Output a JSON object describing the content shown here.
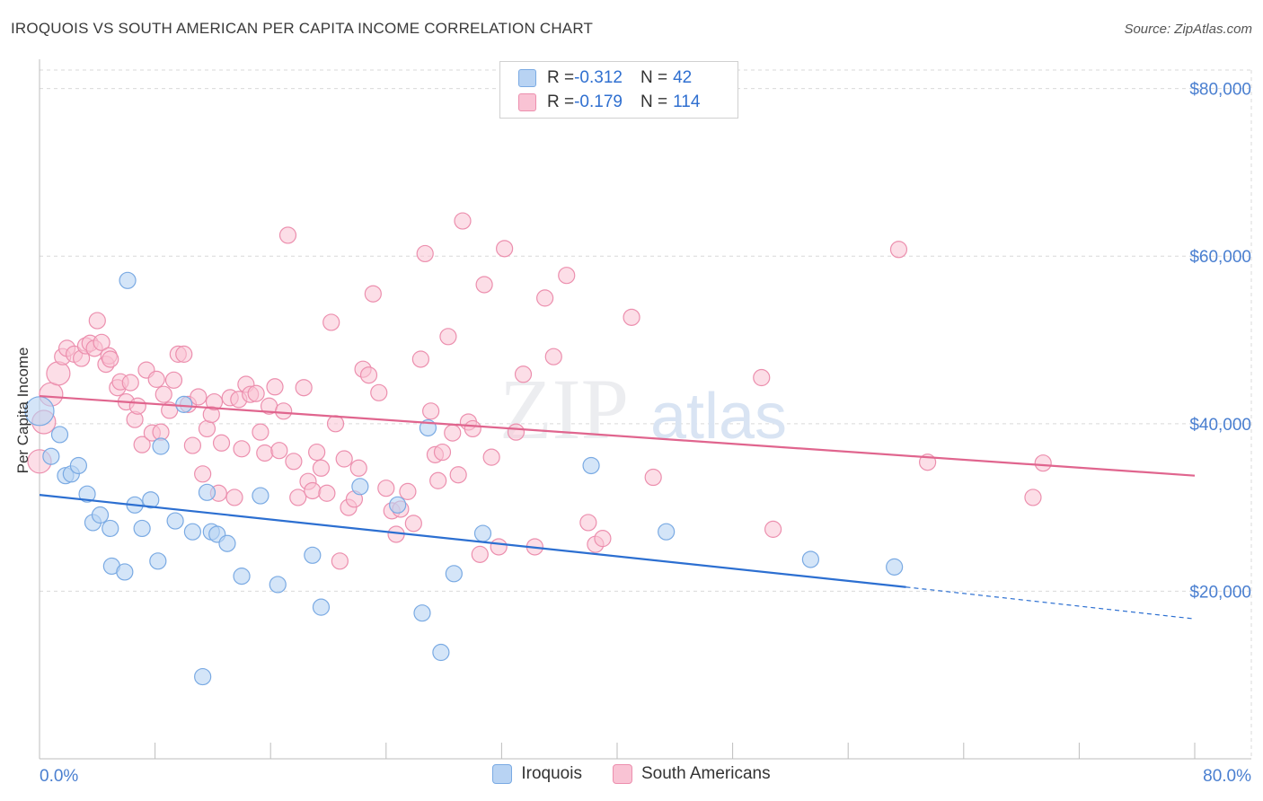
{
  "header": {
    "title": "IROQUOIS VS SOUTH AMERICAN PER CAPITA INCOME CORRELATION CHART",
    "source": "Source: ZipAtlas.com"
  },
  "legend": {
    "iroquois": {
      "r_label": "R = ",
      "r_value": "-0.312",
      "n_label": "N = ",
      "n_value": "42"
    },
    "south_americans": {
      "r_label": "R = ",
      "r_value": "-0.179",
      "n_label": "N = ",
      "n_value": "114"
    }
  },
  "colors": {
    "blue_fill": "#b8d3f3",
    "blue_stroke": "#7aaae3",
    "blue_line": "#2c6fd1",
    "pink_fill": "#f9c3d4",
    "pink_stroke": "#ec8fae",
    "pink_line": "#e0658e",
    "tick_label": "#4a7fd0",
    "grid": "#d9d9d9"
  },
  "chart_data": {
    "type": "scatter",
    "title": "IROQUOIS VS SOUTH AMERICAN PER CAPITA INCOME CORRELATION CHART",
    "xlabel": "",
    "ylabel": "Per Capita Income",
    "xlim": [
      0,
      80
    ],
    "ylim": [
      0,
      82000
    ],
    "x_tick_labels": [
      "0.0%",
      "80.0%"
    ],
    "y_ticks": [
      {
        "value": 20000,
        "label": "$20,000"
      },
      {
        "value": 40000,
        "label": "$40,000"
      },
      {
        "value": 60000,
        "label": "$60,000"
      },
      {
        "value": 80000,
        "label": "$80,000"
      }
    ],
    "watermark": {
      "zip": "ZIP",
      "atlas": "atlas"
    },
    "series": [
      {
        "name": "Iroquois",
        "r": -0.312,
        "n": 42,
        "trend": {
          "x0": 0,
          "y0": 31500,
          "x1": 60,
          "y1": 20500,
          "dash_to_x": 80,
          "dash_to_y": 16700
        },
        "points": [
          [
            0,
            41500
          ],
          [
            0.8,
            36100
          ],
          [
            1.4,
            38700
          ],
          [
            1.8,
            33800
          ],
          [
            2.2,
            34000
          ],
          [
            2.7,
            35000
          ],
          [
            3.3,
            31600
          ],
          [
            3.7,
            28200
          ],
          [
            4.2,
            29100
          ],
          [
            4.9,
            27500
          ],
          [
            5.0,
            23000
          ],
          [
            5.9,
            22300
          ],
          [
            6.1,
            57100
          ],
          [
            6.6,
            30300
          ],
          [
            7.1,
            27500
          ],
          [
            7.7,
            30900
          ],
          [
            8.2,
            23600
          ],
          [
            8.4,
            37300
          ],
          [
            9.4,
            28400
          ],
          [
            10.0,
            42300
          ],
          [
            10.6,
            27100
          ],
          [
            11.3,
            9800
          ],
          [
            11.6,
            31800
          ],
          [
            11.9,
            27100
          ],
          [
            12.3,
            26800
          ],
          [
            13.0,
            25700
          ],
          [
            14.0,
            21800
          ],
          [
            15.3,
            31400
          ],
          [
            16.5,
            20800
          ],
          [
            18.9,
            24300
          ],
          [
            19.5,
            18100
          ],
          [
            22.2,
            32500
          ],
          [
            24.8,
            30300
          ],
          [
            26.5,
            17400
          ],
          [
            26.9,
            39500
          ],
          [
            27.8,
            12700
          ],
          [
            28.7,
            22100
          ],
          [
            30.7,
            26900
          ],
          [
            38.2,
            35000
          ],
          [
            43.4,
            27100
          ],
          [
            53.4,
            23800
          ],
          [
            59.2,
            22900
          ]
        ]
      },
      {
        "name": "South Americans",
        "r": -0.179,
        "n": 114,
        "trend": {
          "x0": 0,
          "y0": 43300,
          "x1": 80,
          "y1": 33800
        },
        "points": [
          [
            0,
            35500
          ],
          [
            0.3,
            40200
          ],
          [
            0.8,
            43500
          ],
          [
            1.3,
            46000
          ],
          [
            1.6,
            48000
          ],
          [
            1.9,
            49000
          ],
          [
            2.4,
            48300
          ],
          [
            2.9,
            47800
          ],
          [
            3.2,
            49300
          ],
          [
            3.5,
            49600
          ],
          [
            3.8,
            49000
          ],
          [
            4.0,
            52300
          ],
          [
            4.3,
            49700
          ],
          [
            4.6,
            47100
          ],
          [
            4.8,
            48100
          ],
          [
            4.9,
            47700
          ],
          [
            5.4,
            44300
          ],
          [
            5.6,
            45000
          ],
          [
            6.0,
            42600
          ],
          [
            6.3,
            44900
          ],
          [
            6.6,
            40500
          ],
          [
            6.8,
            42100
          ],
          [
            7.1,
            37500
          ],
          [
            7.4,
            46400
          ],
          [
            7.8,
            38900
          ],
          [
            8.1,
            45300
          ],
          [
            8.4,
            39000
          ],
          [
            8.6,
            43500
          ],
          [
            9.0,
            41600
          ],
          [
            9.3,
            45200
          ],
          [
            9.6,
            48300
          ],
          [
            10.0,
            48300
          ],
          [
            10.3,
            42300
          ],
          [
            10.6,
            37400
          ],
          [
            11.0,
            43200
          ],
          [
            11.3,
            34000
          ],
          [
            11.6,
            39400
          ],
          [
            11.9,
            41100
          ],
          [
            12.1,
            42600
          ],
          [
            12.4,
            31700
          ],
          [
            12.6,
            37700
          ],
          [
            13.2,
            43100
          ],
          [
            13.5,
            31200
          ],
          [
            13.8,
            42900
          ],
          [
            14.0,
            37000
          ],
          [
            14.3,
            44700
          ],
          [
            14.6,
            43500
          ],
          [
            15.0,
            43600
          ],
          [
            15.3,
            39000
          ],
          [
            15.6,
            36500
          ],
          [
            15.9,
            42100
          ],
          [
            16.3,
            44400
          ],
          [
            16.6,
            36800
          ],
          [
            16.9,
            41500
          ],
          [
            17.2,
            62500
          ],
          [
            17.6,
            35500
          ],
          [
            17.9,
            31200
          ],
          [
            18.3,
            44300
          ],
          [
            18.6,
            33100
          ],
          [
            18.9,
            32000
          ],
          [
            19.2,
            36600
          ],
          [
            19.5,
            34700
          ],
          [
            19.9,
            31700
          ],
          [
            20.2,
            52100
          ],
          [
            20.5,
            40000
          ],
          [
            20.8,
            23600
          ],
          [
            21.1,
            35800
          ],
          [
            21.4,
            30000
          ],
          [
            21.8,
            31000
          ],
          [
            22.1,
            34700
          ],
          [
            22.4,
            46500
          ],
          [
            22.8,
            45800
          ],
          [
            23.1,
            55500
          ],
          [
            23.5,
            43700
          ],
          [
            24.0,
            32300
          ],
          [
            24.4,
            29600
          ],
          [
            24.7,
            26800
          ],
          [
            25.0,
            29800
          ],
          [
            25.5,
            31900
          ],
          [
            25.9,
            28100
          ],
          [
            26.4,
            47700
          ],
          [
            26.7,
            60300
          ],
          [
            27.1,
            41500
          ],
          [
            27.4,
            36300
          ],
          [
            27.6,
            33200
          ],
          [
            27.9,
            36600
          ],
          [
            28.3,
            50400
          ],
          [
            28.6,
            38900
          ],
          [
            29.0,
            33900
          ],
          [
            29.3,
            64200
          ],
          [
            29.7,
            40200
          ],
          [
            30.0,
            39400
          ],
          [
            30.5,
            24400
          ],
          [
            30.8,
            56600
          ],
          [
            31.3,
            36000
          ],
          [
            31.8,
            25300
          ],
          [
            32.2,
            60900
          ],
          [
            33.0,
            39000
          ],
          [
            33.5,
            45900
          ],
          [
            34.3,
            25300
          ],
          [
            35.0,
            55000
          ],
          [
            35.6,
            48000
          ],
          [
            36.5,
            57700
          ],
          [
            38.0,
            28200
          ],
          [
            38.5,
            25600
          ],
          [
            39.0,
            26300
          ],
          [
            41.0,
            52700
          ],
          [
            42.5,
            33600
          ],
          [
            50.0,
            45500
          ],
          [
            50.8,
            27400
          ],
          [
            59.5,
            60800
          ],
          [
            61.5,
            35400
          ],
          [
            68.8,
            31200
          ],
          [
            69.5,
            35300
          ]
        ]
      }
    ]
  }
}
